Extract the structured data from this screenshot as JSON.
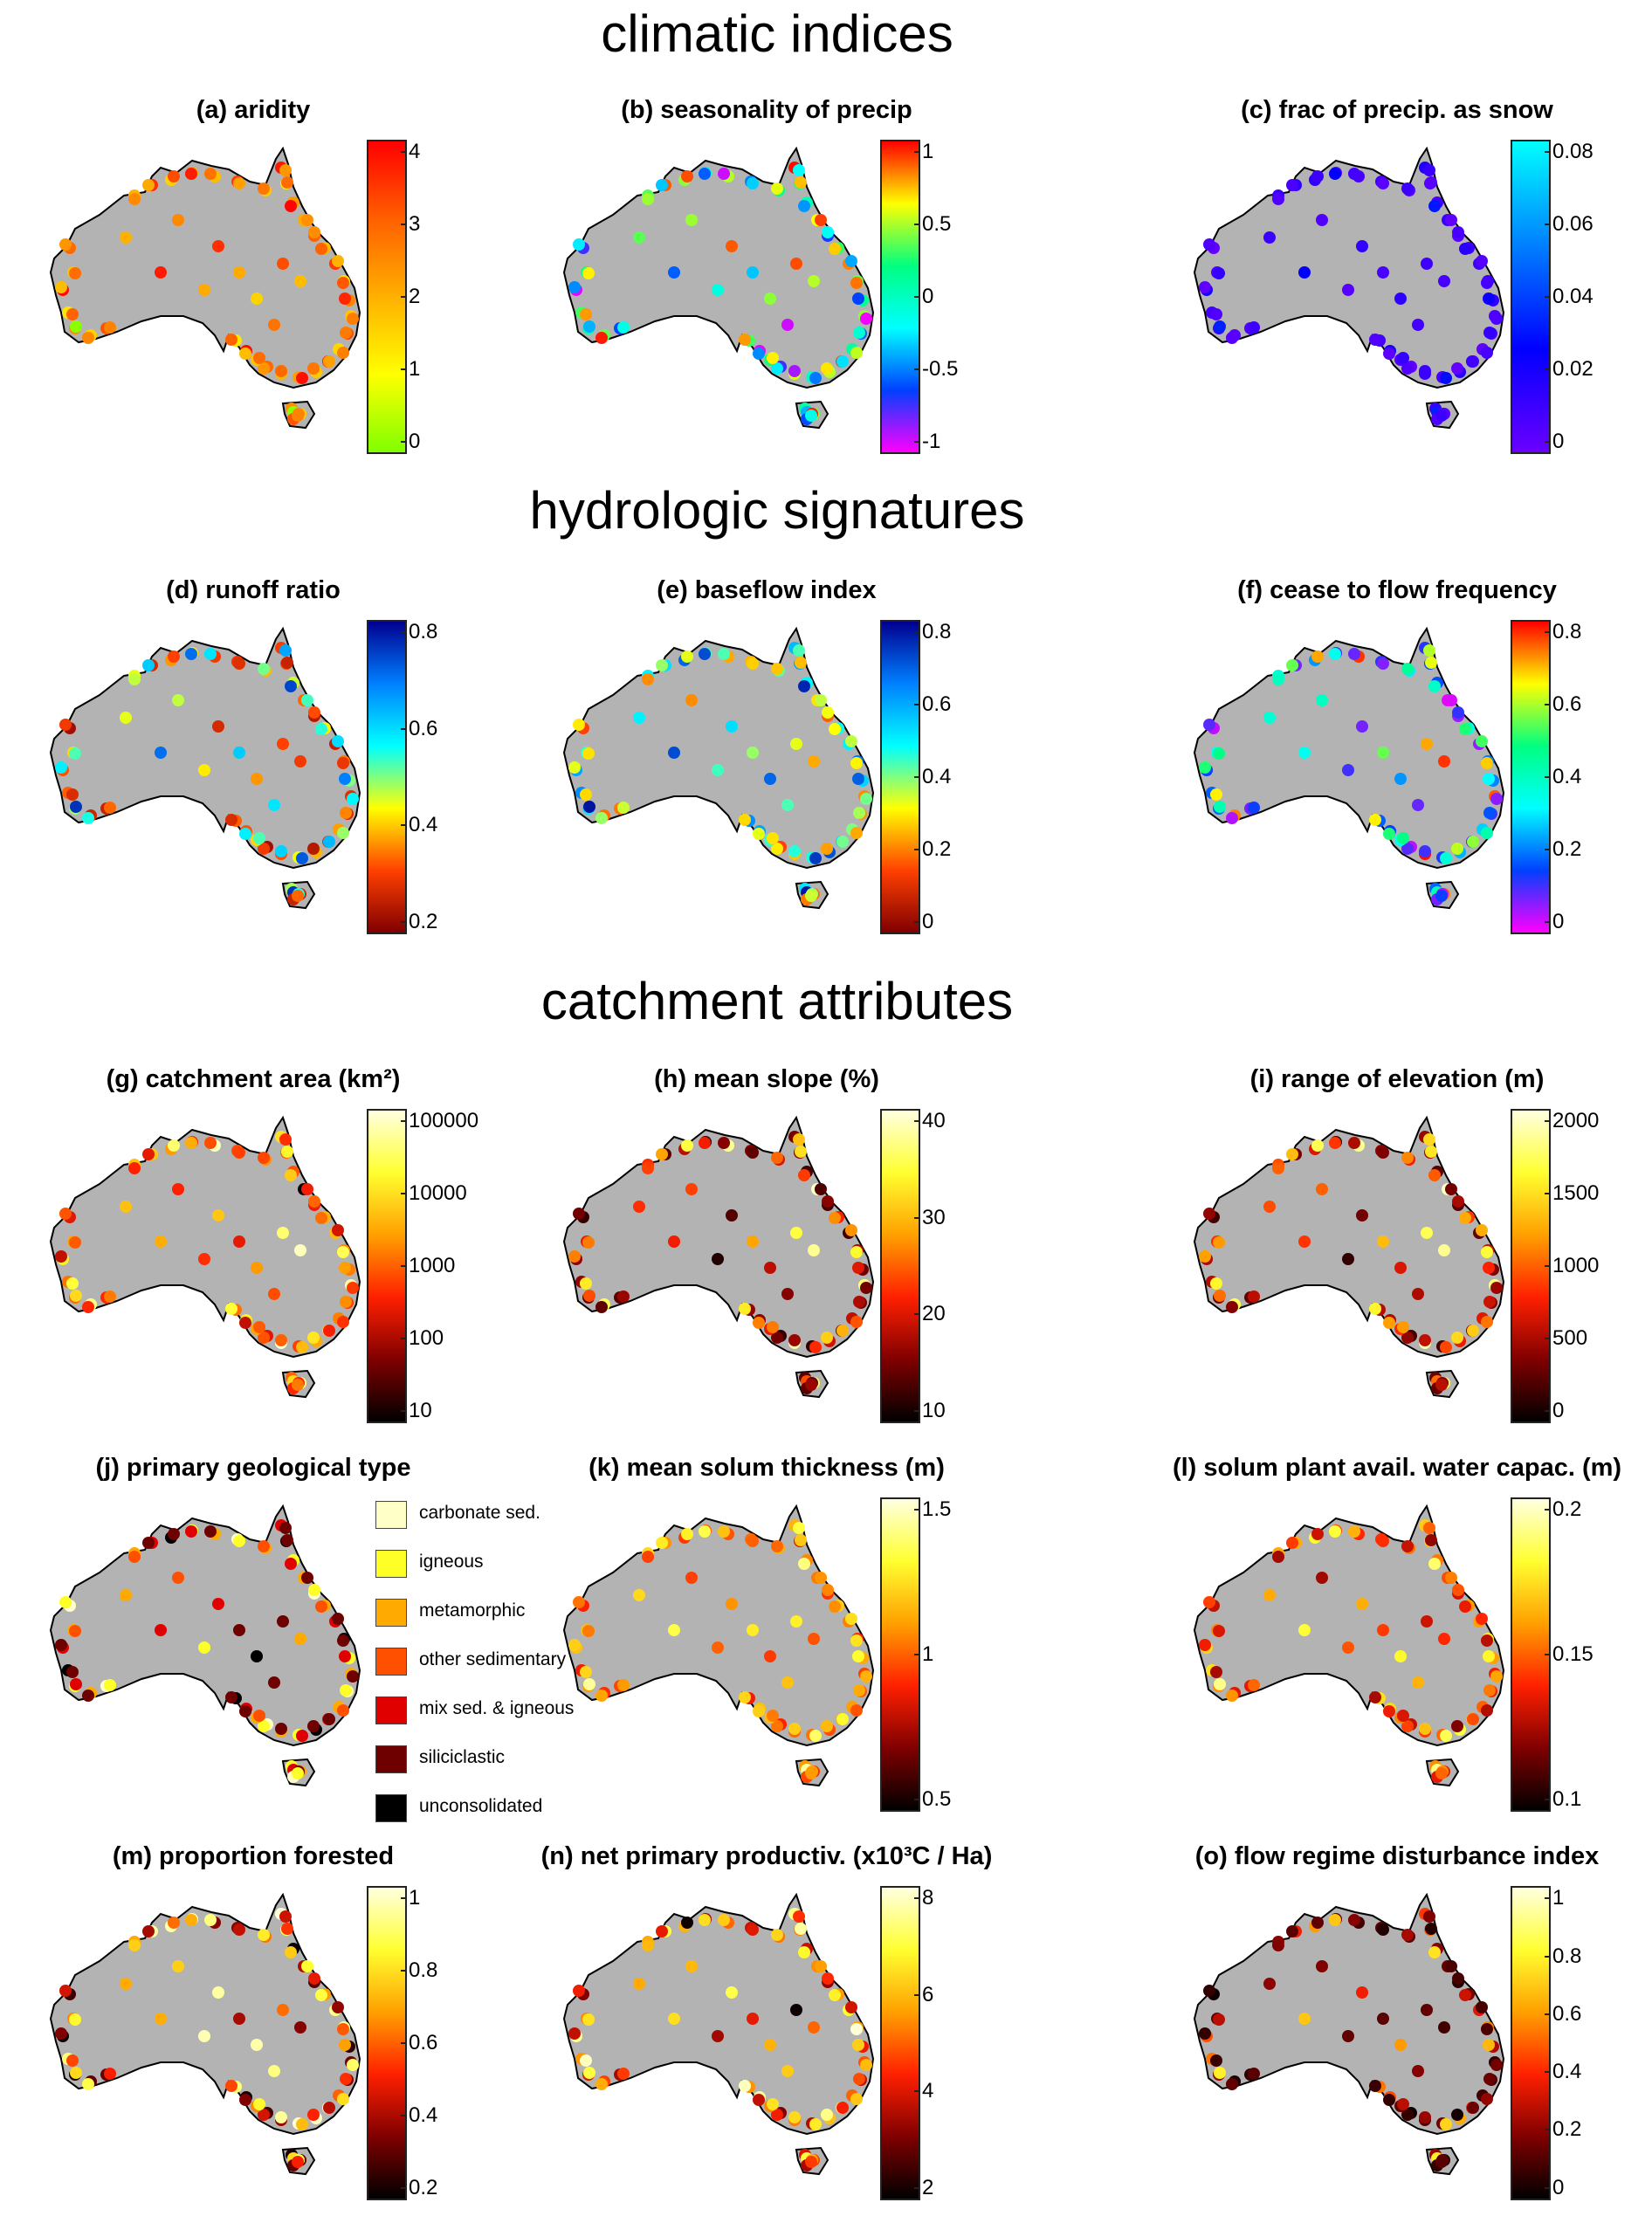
{
  "sections": {
    "climatic": "climatic indices",
    "hydrologic": "hydrologic signatures",
    "catchment": "catchment attributes"
  },
  "panels": [
    {
      "id": "a",
      "title": "(a) aridity",
      "palette": "aridity",
      "ticks": [
        "4",
        "3",
        "2",
        "1",
        "0"
      ],
      "levels": [
        0.72,
        0.55,
        0.38,
        0.62,
        0.85,
        0.46,
        0.3,
        0.68,
        0.52,
        0.9,
        0.4,
        0.6
      ]
    },
    {
      "id": "b",
      "title": "(b) seasonality of precip",
      "palette": "jet",
      "ticks": [
        "1",
        "0.5",
        "0",
        "-0.5",
        "-1"
      ],
      "levels": [
        0.15,
        0.35,
        0.55,
        0.72,
        0.9,
        0.28,
        0.62,
        0.82,
        0.45,
        0.2,
        0.68,
        0.95
      ]
    },
    {
      "id": "c",
      "title": "(c) frac of precip. as snow",
      "palette": "snow",
      "ticks": [
        "0.08",
        "0.06",
        "0.04",
        "0.02",
        "0"
      ],
      "levels": [
        0.02,
        0.05,
        0.03,
        0.08,
        0.15,
        0.04,
        0.1,
        0.02,
        0.06,
        0.3,
        0.05,
        0.03
      ]
    },
    {
      "id": "d",
      "title": "(d) runoff ratio",
      "palette": "jetrev",
      "ticks": [
        "0.8",
        "0.6",
        "0.4",
        "0.2"
      ],
      "levels": [
        0.05,
        0.15,
        0.3,
        0.45,
        0.1,
        0.62,
        0.2,
        0.08,
        0.38,
        0.8,
        0.12,
        0.55
      ]
    },
    {
      "id": "e",
      "title": "(e) baseflow index",
      "palette": "jetrev",
      "ticks": [
        "0.8",
        "0.6",
        "0.4",
        "0.2",
        "0"
      ],
      "levels": [
        0.2,
        0.35,
        0.5,
        0.28,
        0.62,
        0.42,
        0.75,
        0.3,
        0.55,
        0.85,
        0.25,
        0.45
      ]
    },
    {
      "id": "f",
      "title": "(f) cease to flow frequency",
      "palette": "jet",
      "ticks": [
        "0.8",
        "0.6",
        "0.4",
        "0.2",
        "0"
      ],
      "levels": [
        0.05,
        0.1,
        0.35,
        0.5,
        0.08,
        0.62,
        0.2,
        0.75,
        0.15,
        0.4,
        0.9,
        0.03
      ]
    },
    {
      "id": "g",
      "title": "(g) catchment area (km²)",
      "palette": "hot",
      "ticks": [
        "100000",
        "10000",
        "1000",
        "100",
        "10"
      ],
      "levels": [
        0.35,
        0.45,
        0.55,
        0.4,
        0.65,
        0.3,
        0.5,
        0.75,
        0.42,
        0.6,
        0.9,
        0.38
      ]
    },
    {
      "id": "h",
      "title": "(h) mean slope (%)",
      "palette": "hot",
      "ticks": [
        "40",
        "30",
        "20",
        "10"
      ],
      "levels": [
        0.08,
        0.15,
        0.3,
        0.45,
        0.1,
        0.55,
        0.2,
        0.7,
        0.05,
        0.35,
        0.85,
        0.12
      ]
    },
    {
      "id": "i",
      "title": "(i) range of elevation (m)",
      "palette": "hot",
      "ticks": [
        "2000",
        "1500",
        "1000",
        "500",
        "0"
      ],
      "levels": [
        0.1,
        0.2,
        0.35,
        0.5,
        0.15,
        0.6,
        0.25,
        0.72,
        0.08,
        0.4,
        0.85,
        0.18
      ]
    },
    {
      "id": "j",
      "title": "(j) primary geological type",
      "palette": "geo",
      "legend": [
        {
          "label": "carbonate sed.",
          "color": "#ffffc8"
        },
        {
          "label": "igneous",
          "color": "#ffff28"
        },
        {
          "label": "metamorphic",
          "color": "#ffaa00"
        },
        {
          "label": "other sedimentary",
          "color": "#ff5000"
        },
        {
          "label": "mix sed. & igneous",
          "color": "#e00000"
        },
        {
          "label": "siliciclastic",
          "color": "#6e0000"
        },
        {
          "label": "unconsolidated",
          "color": "#000000"
        }
      ],
      "levels": [
        0,
        1,
        2,
        3,
        4,
        5,
        6,
        5,
        1,
        4,
        2,
        5
      ]
    },
    {
      "id": "k",
      "title": "(k) mean solum thickness (m)",
      "palette": "hot",
      "ticks": [
        "1.5",
        "1",
        "0.5"
      ],
      "levels": [
        0.4,
        0.5,
        0.6,
        0.45,
        0.55,
        0.7,
        0.35,
        0.65,
        0.5,
        0.8,
        0.42,
        0.58
      ]
    },
    {
      "id": "l",
      "title": "(l) solum plant avail. water capac. (m)",
      "palette": "hot",
      "ticks": [
        "0.2",
        "0.15",
        "0.1"
      ],
      "levels": [
        0.3,
        0.42,
        0.5,
        0.25,
        0.6,
        0.38,
        0.7,
        0.2,
        0.48,
        0.78,
        0.35,
        0.55
      ]
    },
    {
      "id": "m",
      "title": "(m) proportion forested",
      "palette": "hot",
      "ticks": [
        "1",
        "0.8",
        "0.6",
        "0.4",
        "0.2"
      ],
      "levels": [
        0.1,
        0.3,
        0.5,
        0.7,
        0.9,
        0.2,
        0.85,
        0.4,
        0.95,
        0.6,
        0.15,
        0.8
      ]
    },
    {
      "id": "n",
      "title": "(n) net primary productiv. (x10³C / Ha)",
      "palette": "hot",
      "ticks": [
        "8",
        "6",
        "4",
        "2"
      ],
      "levels": [
        0.2,
        0.35,
        0.5,
        0.65,
        0.8,
        0.3,
        0.55,
        0.9,
        0.25,
        0.7,
        0.45,
        0.6
      ]
    },
    {
      "id": "o",
      "title": "(o) flow regime disturbance index",
      "palette": "hot",
      "ticks": [
        "1",
        "0.8",
        "0.6",
        "0.4",
        "0.2",
        "0"
      ],
      "levels": [
        0.02,
        0.05,
        0.1,
        0.2,
        0.35,
        0.08,
        0.5,
        0.03,
        0.15,
        0.65,
        0.04,
        0.12
      ]
    }
  ]
}
